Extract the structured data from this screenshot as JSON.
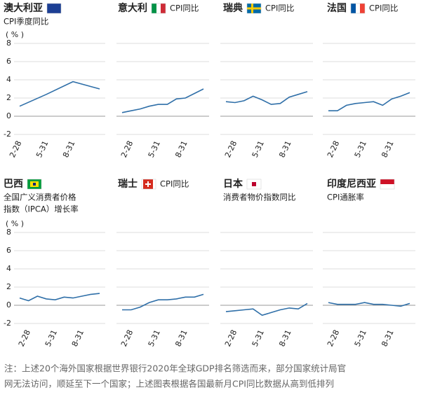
{
  "chart_data": [
    {
      "type": "line",
      "title": "澳大利亚",
      "subtitle": "CPI季度同比",
      "y_unit": "( % )",
      "categories": [
        "2-28",
        "5-31",
        "8-31",
        null
      ],
      "values": [
        1.1,
        2.4,
        3.8,
        3.0
      ],
      "color": "#2f6fa8",
      "ylim": [
        -2,
        8
      ],
      "yticks": [
        -2,
        0,
        2,
        4,
        6,
        8
      ],
      "grid": true
    },
    {
      "type": "line",
      "title": "意大利",
      "subtitle": "CPI同比",
      "categories": [
        null,
        "2-28",
        null,
        null,
        "5-31",
        null,
        null,
        "8-31",
        null,
        null
      ],
      "values": [
        0.4,
        0.6,
        0.8,
        1.1,
        1.3,
        1.3,
        1.9,
        2.0,
        2.5,
        3.0
      ],
      "color": "#2f6fa8",
      "ylim": [
        -2,
        8
      ],
      "yticks": [
        -2,
        0,
        2,
        4,
        6,
        8
      ],
      "grid": true
    },
    {
      "type": "line",
      "title": "瑞典",
      "subtitle": "CPI同比",
      "categories": [
        null,
        "2-28",
        null,
        null,
        "5-31",
        null,
        null,
        "8-31",
        null,
        null
      ],
      "values": [
        1.6,
        1.5,
        1.7,
        2.2,
        1.8,
        1.3,
        1.4,
        2.1,
        2.4,
        2.7
      ],
      "color": "#2f6fa8",
      "ylim": [
        -2,
        8
      ],
      "yticks": [
        -2,
        0,
        2,
        4,
        6,
        8
      ],
      "grid": true
    },
    {
      "type": "line",
      "title": "法国",
      "subtitle": "CPI同比",
      "categories": [
        null,
        "2-28",
        null,
        null,
        "5-31",
        null,
        null,
        "8-31",
        null,
        null
      ],
      "values": [
        0.6,
        0.6,
        1.2,
        1.4,
        1.5,
        1.6,
        1.2,
        1.9,
        2.2,
        2.6
      ],
      "color": "#2f6fa8",
      "ylim": [
        -2,
        8
      ],
      "yticks": [
        -2,
        0,
        2,
        4,
        6,
        8
      ],
      "grid": true
    },
    {
      "type": "line",
      "title": "巴西",
      "subtitle": [
        "全国广义消费者价格",
        "指数（IPCA）增长率"
      ],
      "y_unit": "( % )",
      "categories": [
        null,
        "2-28",
        null,
        null,
        "5-31",
        null,
        null,
        "8-31",
        null,
        null
      ],
      "values": [
        0.8,
        0.5,
        1.0,
        0.7,
        0.6,
        0.9,
        0.8,
        1.0,
        1.2,
        1.3
      ],
      "color": "#2f6fa8",
      "ylim": [
        -2,
        8
      ],
      "yticks": [
        -2,
        0,
        2,
        4,
        6,
        8
      ],
      "grid": true
    },
    {
      "type": "line",
      "title": "瑞士",
      "subtitle": "CPI同比",
      "categories": [
        null,
        "2-28",
        null,
        null,
        "5-31",
        null,
        null,
        "8-31",
        null,
        null
      ],
      "values": [
        -0.5,
        -0.5,
        -0.2,
        0.3,
        0.6,
        0.6,
        0.7,
        0.9,
        0.9,
        1.2
      ],
      "color": "#2f6fa8",
      "ylim": [
        -2,
        8
      ],
      "yticks": [
        -2,
        0,
        2,
        4,
        6,
        8
      ],
      "grid": true
    },
    {
      "type": "line",
      "title": "日本",
      "subtitle": "消费者物价指数同比",
      "categories": [
        null,
        "2-28",
        null,
        null,
        "5-31",
        null,
        null,
        "8-31",
        null,
        null
      ],
      "values": [
        -0.7,
        -0.6,
        -0.5,
        -0.4,
        -1.1,
        -0.8,
        -0.5,
        -0.3,
        -0.4,
        0.2
      ],
      "color": "#2f6fa8",
      "ylim": [
        -2,
        8
      ],
      "yticks": [
        -2,
        0,
        2,
        4,
        6,
        8
      ],
      "grid": true
    },
    {
      "type": "line",
      "title": "印度尼西亚",
      "subtitle": "CPI通胀率",
      "categories": [
        null,
        "2-28",
        null,
        null,
        "5-31",
        null,
        null,
        "8-31",
        null,
        null
      ],
      "values": [
        0.3,
        0.1,
        0.1,
        0.1,
        0.3,
        0.1,
        0.1,
        0.0,
        -0.1,
        0.2
      ],
      "color": "#2f6fa8",
      "ylim": [
        -2,
        8
      ],
      "yticks": [
        -2,
        0,
        2,
        4,
        6,
        8
      ],
      "grid": true
    }
  ],
  "note": [
    "注：上述20个海外国家根据世界银行2020年全球GDP排名筛选而来，部分国家统计局官",
    "网无法访问，顺延至下一个国家；上述图表根据各国最新月CPI同比数据从高到低排列"
  ]
}
